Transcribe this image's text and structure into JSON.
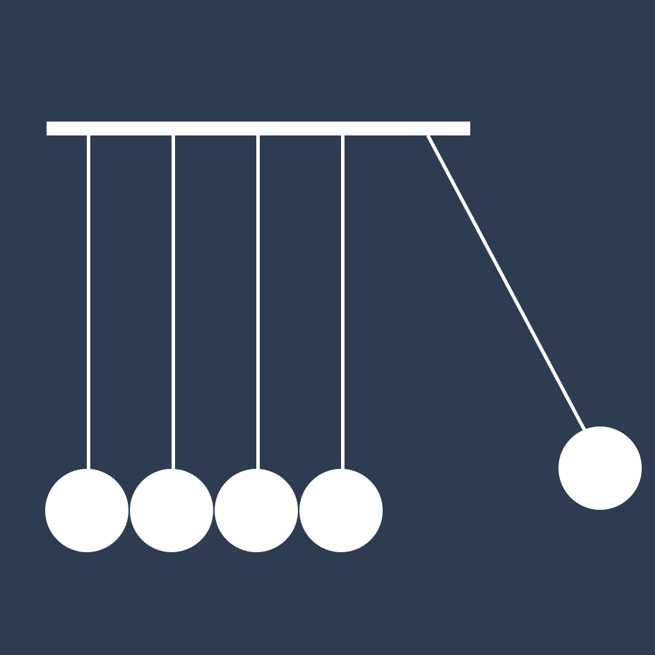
{
  "icon": "newtons-cradle-icon",
  "colors": {
    "background": "#2d3c50",
    "foreground": "#ffffff"
  },
  "cradle": {
    "ball_count": 5,
    "resting_ball_count": 4,
    "swinging_ball_count": 1,
    "swing_side": "right"
  }
}
